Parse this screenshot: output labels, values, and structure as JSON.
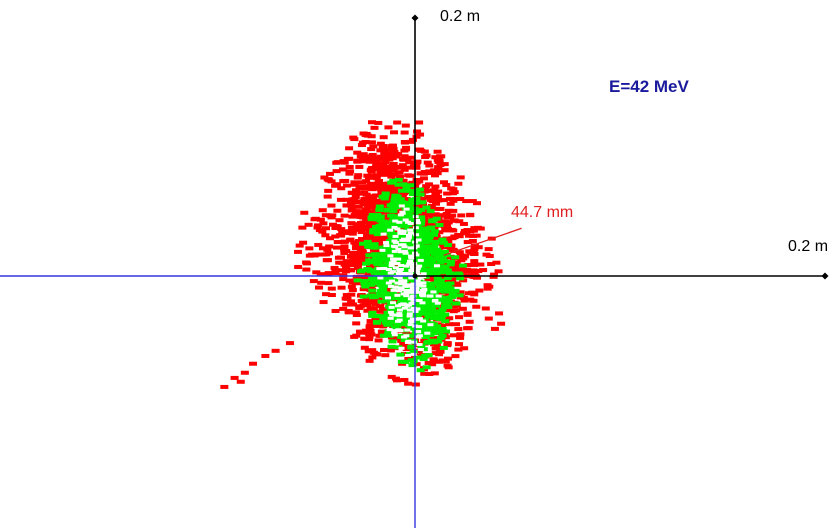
{
  "chart_data": {
    "type": "scatter",
    "title": "",
    "annotations": {
      "energy": "E=42 MeV",
      "y_axis_end": "0.2 m",
      "x_axis_end": "0.2 m",
      "dimension": "44.7 mm"
    },
    "units": "m",
    "xlim": [
      -0.2,
      0.2
    ],
    "ylim": [
      -0.12,
      0.2
    ],
    "grid": false,
    "legend": "none",
    "colors": {
      "outer_series": "#ff0000",
      "inner_series": "#00ee00",
      "core_series": "#ffffff",
      "positive_axes": "#000000",
      "negative_axes": "#3333dd",
      "energy_text": "#1a1a9c",
      "dimension_text": "#e02020"
    },
    "series": [
      {
        "color": "red",
        "distribution": {
          "center": [
            0.0,
            0.022
          ],
          "extent_x": [
            -0.058,
            0.043
          ],
          "extent_y": [
            -0.085,
            0.124
          ],
          "points": 1750
        },
        "outliers": [
          [
            0.002,
            0.119
          ],
          [
            0.001,
            0.112
          ],
          [
            -0.002,
            0.104
          ],
          [
            0.003,
            0.097
          ],
          [
            0.001,
            0.088
          ],
          [
            -0.003,
            0.084
          ],
          [
            -0.045,
            0.051
          ],
          [
            -0.054,
            0.049
          ],
          [
            -0.049,
            0.044
          ],
          [
            -0.057,
            0.007
          ],
          [
            -0.053,
            0.005
          ],
          [
            -0.061,
            -0.052
          ],
          [
            -0.068,
            -0.058
          ],
          [
            -0.073,
            -0.062
          ],
          [
            -0.079,
            -0.068
          ],
          [
            -0.083,
            -0.075
          ],
          [
            -0.088,
            -0.079
          ],
          [
            -0.093,
            -0.086
          ],
          [
            -0.085,
            -0.082
          ],
          [
            0.041,
            -0.029
          ],
          [
            0.036,
            -0.033
          ],
          [
            0.042,
            -0.037
          ],
          [
            0.039,
            -0.041
          ],
          [
            0.022,
            -0.048
          ]
        ]
      },
      {
        "color": "green",
        "distribution": {
          "center": [
            0.0,
            0.018
          ],
          "extent_x": [
            -0.03,
            0.025
          ],
          "extent_y": [
            -0.075,
            0.076
          ],
          "points": 900
        }
      },
      {
        "color": "white",
        "distribution": {
          "center": [
            0.0,
            0.01
          ],
          "extent_x": [
            -0.021,
            0.013
          ],
          "extent_y": [
            -0.064,
            0.058
          ],
          "points": 230
        }
      }
    ],
    "markers": {
      "origin": [
        0,
        0
      ],
      "y_axis_end": [
        0,
        0.2
      ],
      "x_axis_end": [
        0.2,
        0
      ],
      "dimension_line": [
        [
          0.014,
          0.016
        ],
        [
          0.052,
          0.037
        ]
      ]
    }
  }
}
